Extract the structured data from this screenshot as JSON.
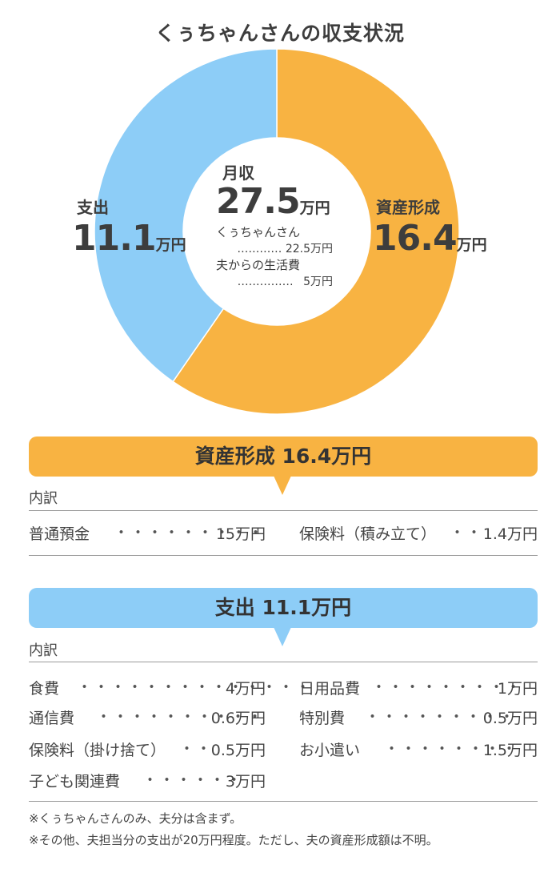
{
  "title": "くぅちゃんさんの収支状況",
  "colors": {
    "asset": "#F8B342",
    "expense": "#8DCDF7",
    "text": "#3d3d3d"
  },
  "chart_data": {
    "type": "pie",
    "title": "くぅちゃんさんの収支状況",
    "unit": "万円",
    "slices": [
      {
        "label": "資産形成",
        "value": 16.4,
        "color": "#F8B342"
      },
      {
        "label": "支出",
        "value": 11.1,
        "color": "#8DCDF7"
      }
    ],
    "center": {
      "label": "月収",
      "value": "27.5",
      "unit": "万円",
      "breakdown": [
        {
          "label": "くぅちゃんさん",
          "value": "22.5万円"
        },
        {
          "label": "夫からの生活費",
          "value": "5万円"
        }
      ]
    }
  },
  "labels": {
    "expense": {
      "name": "支出",
      "value": "11.1",
      "unit": "万円"
    },
    "asset": {
      "name": "資産形成",
      "value": "16.4",
      "unit": "万円"
    }
  },
  "asset_section": {
    "title": "資産形成 16.4万円",
    "breakdown_label": "内訳",
    "items": [
      {
        "label": "普通預金",
        "amount": "15万円"
      },
      {
        "label": "保険料（積み立て）",
        "amount": "1.4万円"
      }
    ]
  },
  "expense_section": {
    "title": "支出 11.1万円",
    "breakdown_label": "内訳",
    "left_items": [
      {
        "label": "食費",
        "amount": "4万円"
      },
      {
        "label": "通信費",
        "amount": "0.6万円"
      },
      {
        "label": "保険料（掛け捨て）",
        "amount": "0.5万円"
      },
      {
        "label": "子ども関連費",
        "amount": "3万円"
      }
    ],
    "right_items": [
      {
        "label": "日用品費",
        "amount": "1万円"
      },
      {
        "label": "特別費",
        "amount": "0.5万円"
      },
      {
        "label": "お小遣い",
        "amount": "1.5万円"
      }
    ]
  },
  "notes": [
    "※くぅちゃんさんのみ、夫分は含まず。",
    "※その他、夫担当分の支出が20万円程度。ただし、夫の資産形成額は不明。"
  ]
}
